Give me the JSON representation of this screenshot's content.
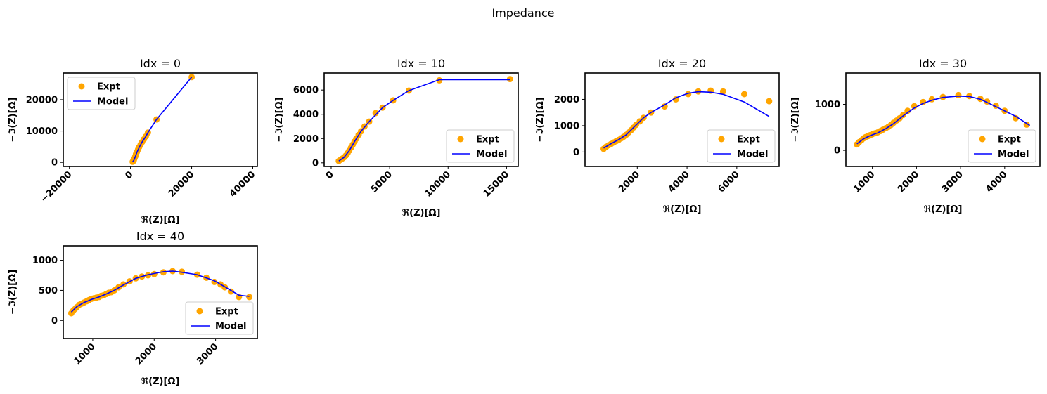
{
  "figure": {
    "title": "Impedance"
  },
  "colors": {
    "expt": "#ffa500",
    "model": "#0000ff",
    "axes": "#000000"
  },
  "chart_data": [
    {
      "type": "scatter",
      "title": "Idx = 0",
      "xlabel": "ℜ(Z)[Ω]",
      "ylabel": "−ℑ(Z)[Ω]",
      "xlim": [
        -22000,
        41500
      ],
      "ylim": [
        -1300,
        28500
      ],
      "xticks": [
        -20000,
        0,
        20000,
        40000
      ],
      "xtick_labels": [
        "−20000",
        "0",
        "20000",
        "40000"
      ],
      "xtick_rotation": -45,
      "yticks": [
        0,
        10000,
        20000
      ],
      "ytick_labels": [
        "0",
        "10000",
        "20000"
      ],
      "legend": {
        "loc": "upper-left",
        "entries": [
          "Expt",
          "Model"
        ]
      },
      "series": [
        {
          "name": "Expt",
          "kind": "scatter",
          "x": [
            700,
            900,
            1100,
            1300,
            1550,
            1800,
            2100,
            2450,
            2850,
            3300,
            3800,
            4400,
            5000,
            5700,
            8500,
            20000
          ],
          "y": [
            200,
            400,
            800,
            1300,
            1900,
            2600,
            3300,
            4100,
            4900,
            5700,
            6500,
            7400,
            8300,
            9500,
            13700,
            27200
          ]
        },
        {
          "name": "Model",
          "kind": "line",
          "x": [
            700,
            1100,
            1550,
            2100,
            2850,
            3800,
            5000,
            5700,
            8500,
            20000
          ],
          "y": [
            200,
            700,
            1800,
            3200,
            4800,
            6500,
            8300,
            9500,
            13700,
            27200
          ]
        }
      ]
    },
    {
      "type": "scatter",
      "title": "Idx = 10",
      "xlabel": "ℜ(Z)[Ω]",
      "ylabel": "−ℑ(Z)[Ω]",
      "xlim": [
        -600,
        16000
      ],
      "ylim": [
        -300,
        7400
      ],
      "xticks": [
        0,
        5000,
        10000,
        15000
      ],
      "xtick_labels": [
        "0",
        "5000",
        "10000",
        "15000"
      ],
      "xtick_rotation": -45,
      "yticks": [
        0,
        2000,
        4000,
        6000
      ],
      "ytick_labels": [
        "0",
        "2000",
        "4000",
        "6000"
      ],
      "legend": {
        "loc": "lower-right",
        "entries": [
          "Expt",
          "Model"
        ]
      },
      "series": [
        {
          "name": "Expt",
          "kind": "scatter",
          "x": [
            650,
            800,
            950,
            1100,
            1250,
            1400,
            1550,
            1700,
            1850,
            2000,
            2150,
            2350,
            2550,
            2850,
            3250,
            3800,
            4400,
            5300,
            6650,
            9250,
            15300
          ],
          "y": [
            150,
            250,
            350,
            450,
            600,
            800,
            1000,
            1250,
            1500,
            1750,
            2000,
            2300,
            2600,
            3000,
            3400,
            4100,
            4550,
            5150,
            5950,
            6800,
            6900
          ]
        },
        {
          "name": "Model",
          "kind": "line",
          "x": [
            650,
            1100,
            1550,
            2000,
            2550,
            3250,
            4400,
            5300,
            6650,
            9250,
            15300
          ],
          "y": [
            150,
            450,
            1000,
            1750,
            2600,
            3400,
            4550,
            5150,
            5950,
            6850,
            6850
          ]
        }
      ]
    },
    {
      "type": "scatter",
      "title": "Idx = 20",
      "xlabel": "ℜ(Z)[Ω]",
      "ylabel": "−ℑ(Z)[Ω]",
      "xlim": [
        -100,
        7700
      ],
      "ylim": [
        -550,
        3000
      ],
      "xticks": [
        2000,
        4000,
        6000
      ],
      "xtick_labels": [
        "2000",
        "4000",
        "6000"
      ],
      "xtick_rotation": -45,
      "yticks": [
        0,
        1000,
        2000
      ],
      "ytick_labels": [
        "0",
        "1000",
        "2000"
      ],
      "legend": {
        "loc": "lower-right",
        "entries": [
          "Expt",
          "Model"
        ]
      },
      "series": [
        {
          "name": "Expt",
          "kind": "scatter",
          "x": [
            650,
            750,
            850,
            950,
            1050,
            1150,
            1250,
            1350,
            1450,
            1550,
            1650,
            1750,
            1850,
            1950,
            2100,
            2250,
            2550,
            3100,
            3550,
            4050,
            4450,
            4950,
            5450,
            6300,
            7300
          ],
          "y": [
            120,
            200,
            260,
            310,
            360,
            410,
            460,
            520,
            580,
            650,
            740,
            830,
            930,
            1030,
            1160,
            1300,
            1500,
            1730,
            2000,
            2200,
            2300,
            2330,
            2300,
            2200,
            1930
          ],
          "note": ""
        },
        {
          "name": "Model",
          "kind": "line",
          "x": [
            650,
            950,
            1250,
            1550,
            1850,
            2250,
            2550,
            3100,
            3550,
            4050,
            4450,
            4950,
            5450,
            6300,
            7300
          ],
          "y": [
            150,
            320,
            470,
            650,
            930,
            1300,
            1500,
            1790,
            2060,
            2230,
            2290,
            2270,
            2190,
            1900,
            1350
          ]
        }
      ]
    },
    {
      "type": "scatter",
      "title": "Idx = 30",
      "xlabel": "ℜ(Z)[Ω]",
      "ylabel": "−ℑ(Z)[Ω]",
      "xlim": [
        400,
        4800
      ],
      "ylim": [
        -350,
        1680
      ],
      "xticks": [
        1000,
        2000,
        3000,
        4000
      ],
      "xtick_labels": [
        "1000",
        "2000",
        "3000",
        "4000"
      ],
      "xtick_rotation": -45,
      "yticks": [
        0,
        1000
      ],
      "ytick_labels": [
        "0",
        "1000"
      ],
      "legend": {
        "loc": "lower-right",
        "entries": [
          "Expt",
          "Model"
        ]
      },
      "series": [
        {
          "name": "Expt",
          "kind": "scatter",
          "x": [
            650,
            700,
            750,
            800,
            850,
            900,
            950,
            1000,
            1060,
            1120,
            1180,
            1240,
            1300,
            1360,
            1420,
            1480,
            1550,
            1620,
            1700,
            1800,
            1950,
            2150,
            2350,
            2600,
            2950,
            3200,
            3450,
            3600,
            3800,
            4000,
            4250,
            4500
          ],
          "y": [
            130,
            180,
            220,
            260,
            290,
            310,
            330,
            350,
            370,
            390,
            420,
            450,
            480,
            510,
            550,
            600,
            650,
            700,
            770,
            860,
            960,
            1050,
            1110,
            1160,
            1200,
            1180,
            1120,
            1060,
            970,
            860,
            700,
            560
          ]
        },
        {
          "name": "Model",
          "kind": "line",
          "x": [
            650,
            800,
            950,
            1120,
            1300,
            1480,
            1700,
            1950,
            2150,
            2350,
            2600,
            2950,
            3200,
            3450,
            3800,
            4250,
            4570
          ],
          "y": [
            140,
            250,
            320,
            380,
            470,
            580,
            750,
            920,
            1020,
            1090,
            1150,
            1180,
            1170,
            1110,
            950,
            740,
            540
          ]
        }
      ]
    },
    {
      "type": "scatter",
      "title": "Idx = 40",
      "xlabel": "ℜ(Z)[Ω]",
      "ylabel": "−ℑ(Z)[Ω]",
      "xlim": [
        520,
        3680
      ],
      "ylim": [
        -300,
        1240
      ],
      "xticks": [
        1000,
        2000,
        3000
      ],
      "xtick_labels": [
        "1000",
        "2000",
        "3000"
      ],
      "xtick_rotation": -45,
      "yticks": [
        0,
        500,
        1000
      ],
      "ytick_labels": [
        "0",
        "500",
        "1000"
      ],
      "legend": {
        "loc": "lower-right",
        "entries": [
          "Expt",
          "Model"
        ]
      },
      "series": [
        {
          "name": "Expt",
          "kind": "scatter",
          "x": [
            650,
            680,
            710,
            740,
            780,
            820,
            860,
            900,
            940,
            980,
            1020,
            1060,
            1100,
            1140,
            1180,
            1220,
            1260,
            1300,
            1350,
            1420,
            1500,
            1600,
            1700,
            1800,
            1900,
            2000,
            2150,
            2300,
            2450,
            2700,
            2850,
            2980,
            3080,
            3150,
            3250,
            3380,
            3550
          ],
          "y": [
            120,
            160,
            190,
            220,
            260,
            280,
            300,
            320,
            340,
            360,
            370,
            380,
            390,
            410,
            420,
            440,
            460,
            470,
            500,
            550,
            600,
            650,
            700,
            730,
            750,
            770,
            800,
            820,
            810,
            760,
            710,
            640,
            600,
            550,
            480,
            390,
            390
          ]
        },
        {
          "name": "Model",
          "kind": "line",
          "x": [
            650,
            740,
            860,
            980,
            1100,
            1220,
            1350,
            1500,
            1700,
            1900,
            2150,
            2300,
            2450,
            2700,
            2980,
            3150,
            3380,
            3550
          ],
          "y": [
            140,
            230,
            300,
            350,
            390,
            440,
            500,
            590,
            700,
            760,
            810,
            820,
            800,
            760,
            660,
            560,
            420,
            400
          ]
        }
      ]
    }
  ]
}
